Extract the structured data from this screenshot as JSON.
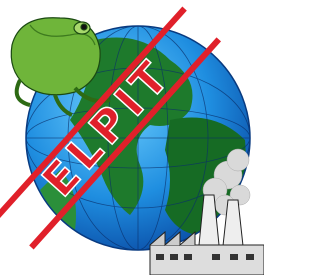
{
  "logo": {
    "text": "ELPIT"
  }
}
